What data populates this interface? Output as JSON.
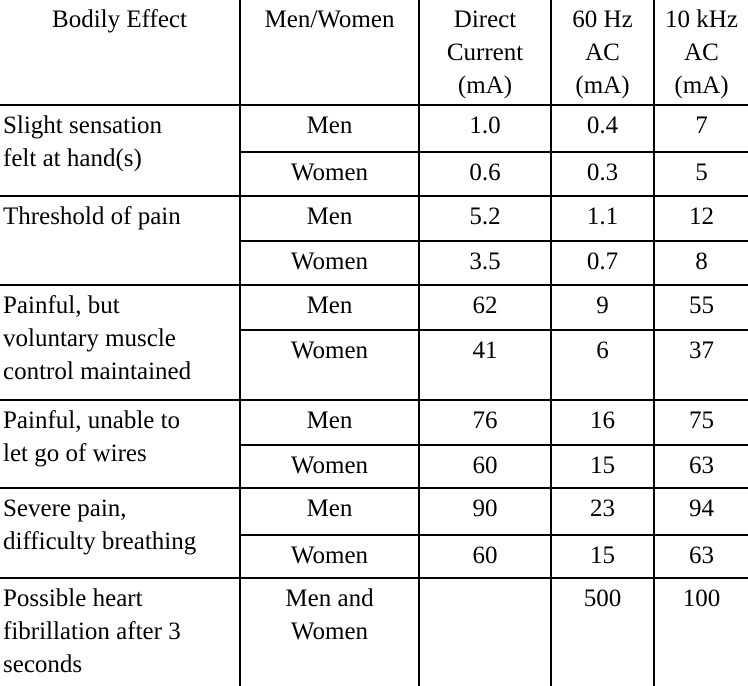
{
  "chart_data": {
    "type": "table",
    "columns": [
      "Bodily Effect",
      "Men/Women",
      "Direct Current (mA)",
      "60 Hz AC (mA)",
      "10 kHz AC (mA)"
    ],
    "header_display": {
      "bodily_effect": "Bodily Effect",
      "men_women": "Men/Women",
      "direct_current": "Direct\nCurrent\n(mA)",
      "ac_60hz": "60 Hz\nAC\n(mA)",
      "ac_10khz": "10 kHz\nAC\n(mA)"
    },
    "units": "mA",
    "layout": {
      "grid": "on",
      "outer_border": "none",
      "bottom_cut_off": true
    },
    "colors": {
      "text": "#000000",
      "border": "#000000",
      "background": "#ffffff"
    },
    "row_groups": [
      {
        "effect": "Slight sensation felt at hand(s)",
        "effect_display": "Slight sensation\nfelt at hand(s)",
        "rows": [
          {
            "sex": "Men",
            "direct_current_ma": "1.0",
            "ac_60hz_ma": "0.4",
            "ac_10khz_ma": "7"
          },
          {
            "sex": "Women",
            "direct_current_ma": "0.6",
            "ac_60hz_ma": "0.3",
            "ac_10khz_ma": "5"
          }
        ]
      },
      {
        "effect": "Threshold of pain",
        "effect_display": "Threshold of pain",
        "rows": [
          {
            "sex": "Men",
            "direct_current_ma": "5.2",
            "ac_60hz_ma": "1.1",
            "ac_10khz_ma": "12"
          },
          {
            "sex": "Women",
            "direct_current_ma": "3.5",
            "ac_60hz_ma": "0.7",
            "ac_10khz_ma": "8"
          }
        ]
      },
      {
        "effect": "Painful, but voluntary muscle control maintained",
        "effect_display": "Painful, but\nvoluntary muscle\ncontrol maintained",
        "rows": [
          {
            "sex": "Men",
            "direct_current_ma": "62",
            "ac_60hz_ma": "9",
            "ac_10khz_ma": "55"
          },
          {
            "sex": "Women",
            "direct_current_ma": "41",
            "ac_60hz_ma": "6",
            "ac_10khz_ma": "37"
          }
        ]
      },
      {
        "effect": "Painful, unable to let go of wires",
        "effect_display": "Painful, unable to\nlet go of wires",
        "rows": [
          {
            "sex": "Men",
            "direct_current_ma": "76",
            "ac_60hz_ma": "16",
            "ac_10khz_ma": "75"
          },
          {
            "sex": "Women",
            "direct_current_ma": "60",
            "ac_60hz_ma": "15",
            "ac_10khz_ma": "63"
          }
        ]
      },
      {
        "effect": "Severe pain, difficulty breathing",
        "effect_display": "Severe pain,\ndifficulty breathing",
        "rows": [
          {
            "sex": "Men",
            "direct_current_ma": "90",
            "ac_60hz_ma": "23",
            "ac_10khz_ma": "94"
          },
          {
            "sex": "Women",
            "direct_current_ma": "60",
            "ac_60hz_ma": "15",
            "ac_10khz_ma": "63"
          }
        ]
      },
      {
        "effect": "Possible heart fibrillation after 3 seconds",
        "effect_display": "Possible heart\nfibrillation after 3\nseconds",
        "rows": [
          {
            "sex": "Men and Women",
            "sex_display": "Men and\nWomen",
            "direct_current_ma": "",
            "ac_60hz_ma": "500",
            "ac_10khz_ma": "100"
          }
        ]
      }
    ]
  }
}
